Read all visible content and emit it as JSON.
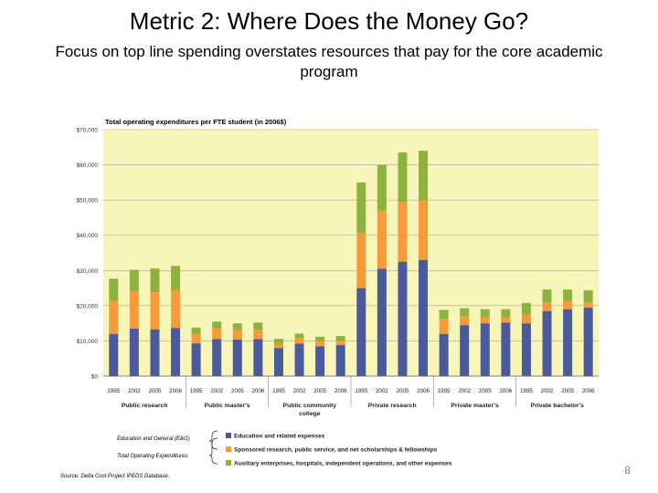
{
  "slide": {
    "title": "Metric 2: Where Does the Money Go?",
    "subtitle": "Focus on top line spending overstates resources that pay for the core academic program",
    "page_number": "8"
  },
  "notes": {
    "eg": "Education and General (E&G)",
    "total": "Total Operating Expenditures",
    "source": "Source: Delta Cost Project IPEDS Database."
  },
  "colors": {
    "plot_bg": "#f8f5b8",
    "education": "#4a5a9a",
    "sponsored": "#f79a3a",
    "auxiliary": "#8db33e"
  },
  "chart_data": {
    "type": "bar",
    "stacked": true,
    "title": "Total operating expenditures per FTE student (in 2006$)",
    "ylim": [
      0,
      70000
    ],
    "yticks": [
      "$0",
      "$10,000",
      "$20,000",
      "$30,000",
      "$40,000",
      "$50,000",
      "$60,000",
      "$70,000"
    ],
    "grid": true,
    "legend_position": "bottom",
    "groups": [
      {
        "label": "Public research",
        "years": [
          "1995",
          "2002",
          "2005",
          "2006"
        ]
      },
      {
        "label": "Public master's",
        "years": [
          "1995",
          "2002",
          "2005",
          "2006"
        ]
      },
      {
        "label": "Public community college",
        "years": [
          "1995",
          "2002",
          "2005",
          "2006"
        ]
      },
      {
        "label": "Private research",
        "years": [
          "1995",
          "2002",
          "2005",
          "2006"
        ]
      },
      {
        "label": "Private master's",
        "years": [
          "1995",
          "2002",
          "2005",
          "2006"
        ]
      },
      {
        "label": "Private bachelor's",
        "years": [
          "1995",
          "2002",
          "2005",
          "2006"
        ]
      }
    ],
    "series": [
      {
        "name": "Education and related expenses",
        "values": [
          12000,
          13500,
          13300,
          13700,
          9300,
          10500,
          10400,
          10500,
          8000,
          9200,
          8500,
          8800,
          25000,
          30500,
          32500,
          33000,
          12000,
          14500,
          15000,
          15200,
          15000,
          18500,
          19000,
          19500
        ]
      },
      {
        "name": "Sponsored research, public service, and net scholarships & fellowships",
        "values": [
          9500,
          10500,
          10500,
          10800,
          2700,
          3000,
          2600,
          2700,
          1200,
          1600,
          1400,
          1300,
          15500,
          16500,
          17000,
          17000,
          4300,
          2500,
          1600,
          1500,
          2500,
          2300,
          2300,
          1400
        ]
      },
      {
        "name": "Auxiliary enterprises, hospitals, independent operations, and other expenses",
        "values": [
          6200,
          6200,
          6800,
          6800,
          1800,
          2000,
          2000,
          2000,
          1400,
          1300,
          1300,
          1300,
          14500,
          13000,
          14000,
          14000,
          2500,
          2300,
          2400,
          2300,
          3300,
          3800,
          3300,
          3500
        ]
      }
    ]
  }
}
